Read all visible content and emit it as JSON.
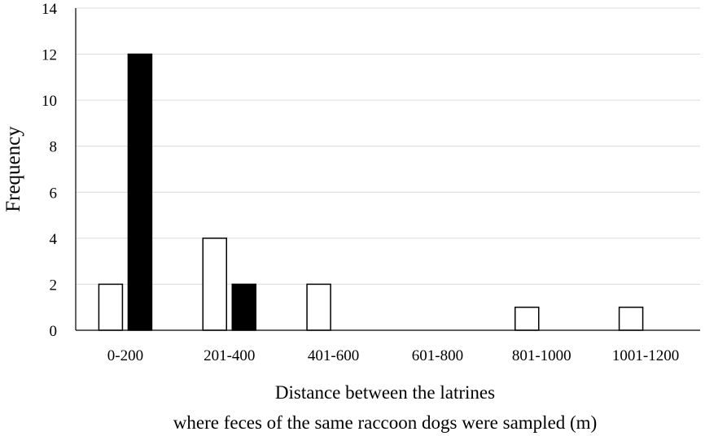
{
  "chart_data": {
    "type": "bar",
    "categories": [
      "0-200",
      "201-400",
      "401-600",
      "601-800",
      "801-1000",
      "1001-1200"
    ],
    "series": [
      {
        "values": [
          2,
          4,
          2,
          0,
          1,
          1
        ],
        "color": "#ffffff"
      },
      {
        "values": [
          12,
          2,
          0,
          0,
          0,
          0
        ],
        "color": "#000000"
      }
    ],
    "xlabel": [
      "Distance between the latrines",
      "where feces of the same raccoon dogs were sampled (m)"
    ],
    "ylabel": "Frequency",
    "ylim": [
      0,
      14
    ],
    "yticks": [
      0,
      2,
      4,
      6,
      8,
      10,
      12,
      14
    ],
    "grid": true,
    "legend": "none"
  }
}
